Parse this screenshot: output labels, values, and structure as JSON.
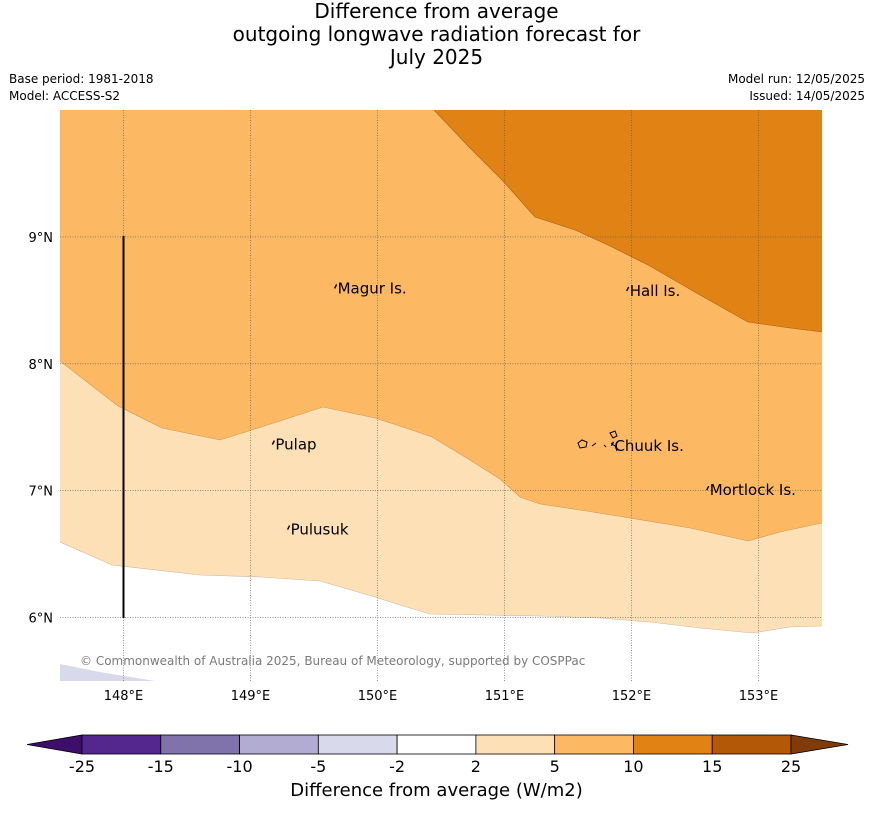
{
  "title": {
    "line1": "Difference from average",
    "line2": "outgoing longwave radiation forecast for",
    "line3": "July 2025"
  },
  "meta_left": {
    "base_period": "Base period: 1981-2018",
    "model": "Model: ACCESS-S2"
  },
  "meta_right": {
    "model_run": "Model run: 12/05/2025",
    "issued": "Issued: 14/05/2025"
  },
  "map": {
    "lon_range": [
      147.5,
      153.5
    ],
    "lat_range": [
      5.5,
      10.0
    ],
    "lon_ticks": [
      148,
      149,
      150,
      151,
      152,
      153
    ],
    "lon_labels": [
      "148°E",
      "149°E",
      "150°E",
      "151°E",
      "152°E",
      "153°E"
    ],
    "lat_ticks": [
      6,
      7,
      8,
      9
    ],
    "lat_labels": [
      "6°N",
      "7°N",
      "8°N",
      "9°N"
    ],
    "islands": [
      {
        "name": "Magur Is.",
        "lon": 149.67,
        "lat": 8.57
      },
      {
        "name": "Hall Is.",
        "lon": 151.97,
        "lat": 8.55
      },
      {
        "name": "Pulap",
        "lon": 149.18,
        "lat": 7.34
      },
      {
        "name": "Chuuk Is.",
        "lon": 151.85,
        "lat": 7.33
      },
      {
        "name": "Mortlock Is.",
        "lon": 152.6,
        "lat": 6.98
      },
      {
        "name": "Pulusuk",
        "lon": 149.3,
        "lat": 6.67
      }
    ],
    "copyright": "© Commonwealth of Australia 2025, Bureau of Meteorology, supported by COSPPac"
  },
  "colorbar": {
    "tick_labels": [
      "-25",
      "-15",
      "-10",
      "-5",
      "-2",
      "2",
      "5",
      "10",
      "15",
      "25"
    ],
    "colors": [
      "#3d0f6b",
      "#54278f",
      "#8073ac",
      "#b2abd2",
      "#d8daeb",
      "#ffffff",
      "#fee0b6",
      "#fdb863",
      "#e08214",
      "#b35806",
      "#7f3b08"
    ],
    "label": "Difference from average (W/m2)"
  },
  "legend_colors": {
    "lt_minus5": "#d8daeb",
    "zero": "#ffffff",
    "2_to_5": "#fee0b6",
    "5_to_10": "#fdb863",
    "10_to_15": "#e08214"
  }
}
